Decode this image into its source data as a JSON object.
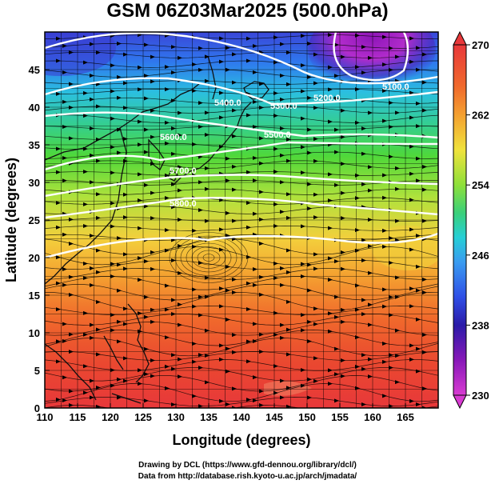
{
  "title": "GSM 06Z03Mar2025 (500.0hPa)",
  "axes": {
    "xlabel": "Longitude (degrees)",
    "ylabel": "Latitude  (degrees)",
    "x_ticks": [
      "110",
      "115",
      "120",
      "125",
      "130",
      "135",
      "140",
      "145",
      "150",
      "155",
      "160",
      "165"
    ],
    "y_ticks": [
      "0",
      "5",
      "10",
      "15",
      "20",
      "25",
      "30",
      "35",
      "40",
      "45"
    ],
    "xlim": [
      110,
      170
    ],
    "ylim": [
      0,
      50
    ]
  },
  "colorbar": {
    "labels": [
      "270",
      "262",
      "254",
      "246",
      "238",
      "230"
    ],
    "range": [
      230,
      270
    ],
    "colors": [
      "#d83bd2",
      "#8818b8",
      "#2a1aa8",
      "#2f4fe6",
      "#3a9cf0",
      "#26cfd6",
      "#3ad07a",
      "#4ad634",
      "#a6e23a",
      "#f0e23c",
      "#f5b234",
      "#f28a2a",
      "#ee5a2a",
      "#e8383a"
    ]
  },
  "contours": [
    {
      "label": "5100.0",
      "level": 5100
    },
    {
      "label": "5200.0",
      "level": 5200
    },
    {
      "label": "5300.0",
      "level": 5300
    },
    {
      "label": "5400.0",
      "level": 5400
    },
    {
      "label": "5500.0",
      "level": 5500
    },
    {
      "label": "5600.0",
      "level": 5600
    },
    {
      "label": "5700.0",
      "level": 5700
    },
    {
      "label": "5800.0",
      "level": 5800
    },
    {
      "label": "5850.0",
      "level": 5850
    }
  ],
  "credits": {
    "line1": "Drawing by DCL (https://www.gfd-dennou.org/library/dcl/)",
    "line2": "Data from http://database.rish.kyoto-u.ac.jp/arch/jmadata/"
  }
}
